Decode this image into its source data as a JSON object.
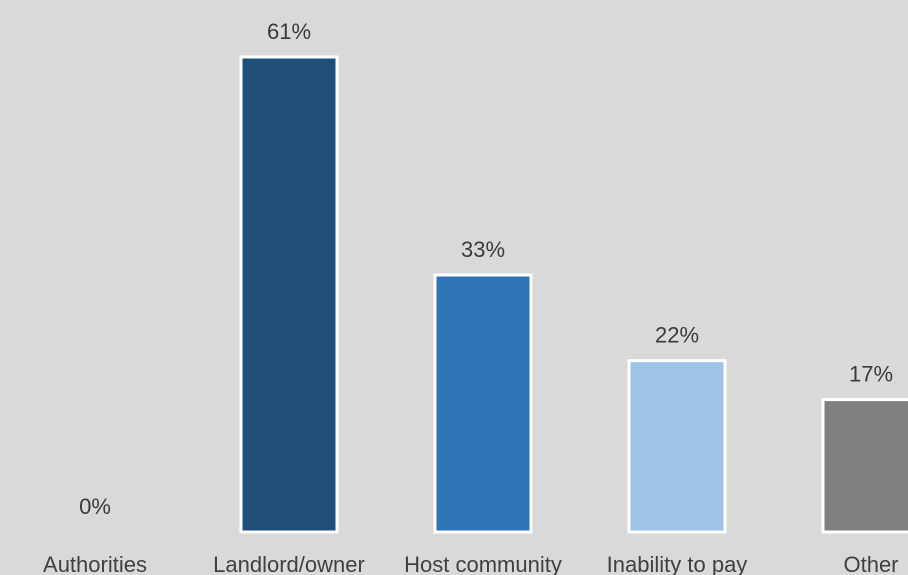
{
  "chart_data": {
    "type": "bar",
    "categories": [
      "Authorities",
      "Landlord/owner",
      "Host community",
      "Inability to pay",
      "Other"
    ],
    "values": [
      0,
      61,
      33,
      22,
      17
    ],
    "value_labels": [
      "0%",
      "61%",
      "33%",
      "22%",
      "17%"
    ],
    "bar_colors": [
      "#1f4e79",
      "#1f4e79",
      "#2e75b6",
      "#9dc3e6",
      "#7f7f7f"
    ],
    "title": "",
    "xlabel": "",
    "ylabel": "",
    "ylim": [
      0,
      61
    ],
    "grid": false,
    "legend": "none"
  },
  "colors": {
    "background": "#d9d9d9",
    "bar_outline": "#ffffff",
    "label_text": "#3a3a3a"
  }
}
